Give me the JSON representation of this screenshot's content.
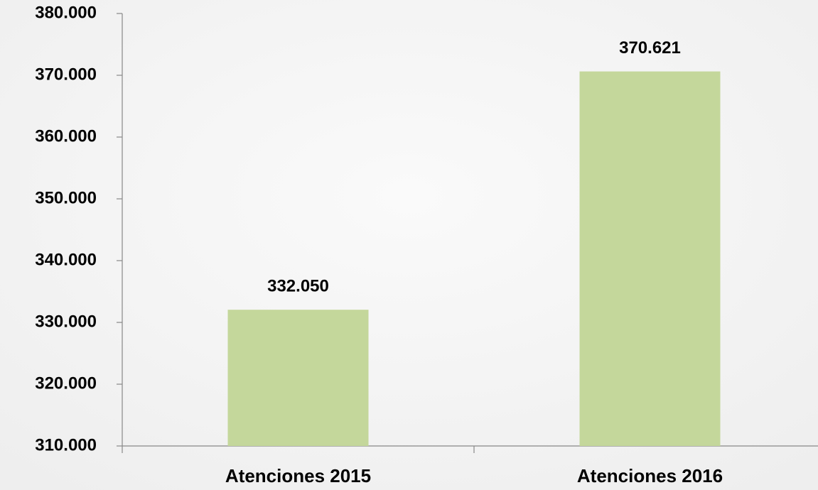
{
  "chart_data": {
    "type": "bar",
    "categories": [
      "Atenciones 2015",
      "Atenciones 2016"
    ],
    "values": [
      332050,
      370621
    ],
    "value_labels": [
      "332.050",
      "370.621"
    ],
    "color": "#c4d79b",
    "ylim": [
      310000,
      380000
    ],
    "yticks": [
      {
        "value": 310000,
        "label": "310.000"
      },
      {
        "value": 320000,
        "label": "320.000"
      },
      {
        "value": 330000,
        "label": "330.000"
      },
      {
        "value": 340000,
        "label": "340.000"
      },
      {
        "value": 350000,
        "label": "350.000"
      },
      {
        "value": 360000,
        "label": "360.000"
      },
      {
        "value": 370000,
        "label": "370.000"
      },
      {
        "value": 380000,
        "label": "380.000"
      }
    ],
    "grid": false
  }
}
